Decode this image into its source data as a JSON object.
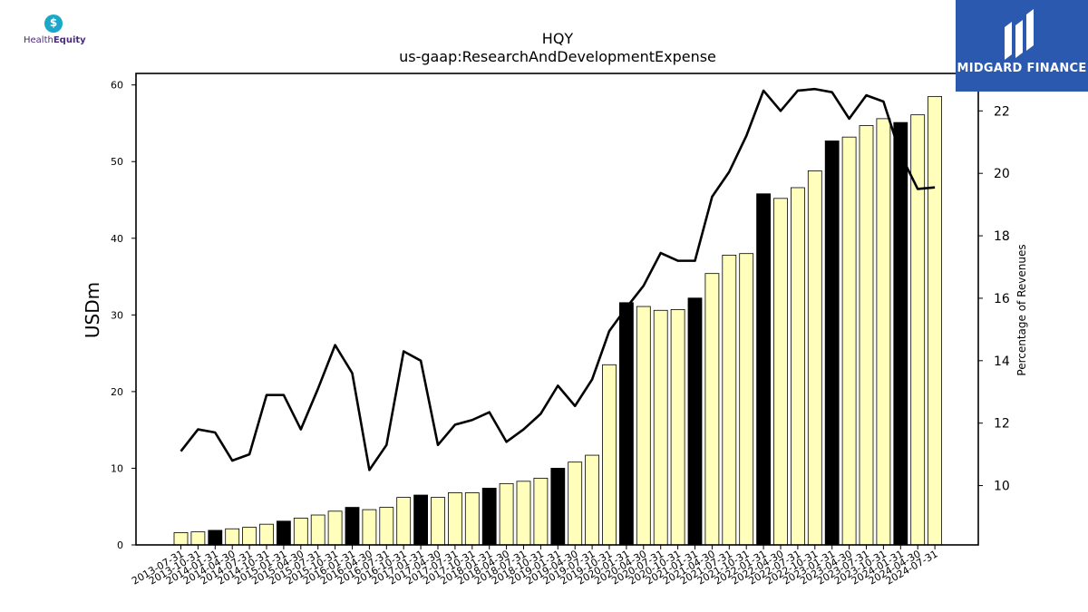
{
  "logos": {
    "left_brand": "HealthEquity",
    "left_brand_a": "Health",
    "left_brand_b": "Equity",
    "right_brand": "MIDGARD FINANCE"
  },
  "chart_data": {
    "type": "bar+line",
    "title": "HQY",
    "subtitle": "us-gaap:ResearchAndDevelopmentExpense",
    "ylabel": "USDm",
    "y2label": "Percentage of Revenues",
    "ylim": [
      0,
      61.5
    ],
    "y2lim": [
      8.1,
      23.2
    ],
    "yticks": [
      0,
      10,
      20,
      30,
      40,
      50,
      60
    ],
    "y2ticks": [
      10,
      12,
      14,
      16,
      18,
      20,
      22
    ],
    "categories": [
      "2013-07-31",
      "2013-10-31",
      "2014-01-31",
      "2014-04-30",
      "2014-07-31",
      "2014-10-31",
      "2015-01-31",
      "2015-04-30",
      "2015-07-31",
      "2015-10-31",
      "2016-01-31",
      "2016-04-30",
      "2016-07-31",
      "2016-10-31",
      "2017-01-31",
      "2017-04-30",
      "2017-07-31",
      "2017-10-31",
      "2018-01-31",
      "2018-04-30",
      "2018-07-31",
      "2018-10-31",
      "2019-01-31",
      "2019-04-30",
      "2019-07-31",
      "2019-10-31",
      "2020-01-31",
      "2020-04-30",
      "2020-07-31",
      "2020-10-31",
      "2021-01-31",
      "2021-04-30",
      "2021-07-31",
      "2021-10-31",
      "2022-01-31",
      "2022-04-30",
      "2022-07-31",
      "2022-10-31",
      "2023-01-31",
      "2023-04-30",
      "2023-07-31",
      "2023-10-31",
      "2024-01-31",
      "2024-04-30",
      "2024-07-31"
    ],
    "series": [
      {
        "type": "bar",
        "values": [
          1.6,
          1.7,
          1.9,
          2.1,
          2.3,
          2.7,
          3.1,
          3.5,
          3.9,
          4.4,
          4.9,
          4.6,
          4.9,
          6.2,
          6.5,
          6.2,
          6.8,
          6.8,
          7.4,
          8.0,
          8.3,
          8.7,
          10.0,
          10.8,
          11.7,
          23.5,
          31.6,
          31.1,
          30.6,
          30.7,
          32.2,
          35.4,
          37.8,
          38.0,
          45.8,
          45.2,
          46.6,
          48.8,
          52.7,
          53.2,
          54.7,
          55.6,
          55.1,
          56.1,
          58.5
        ],
        "highlight": [
          false,
          false,
          true,
          false,
          false,
          false,
          true,
          false,
          false,
          false,
          true,
          false,
          false,
          false,
          true,
          false,
          false,
          false,
          true,
          false,
          false,
          false,
          true,
          false,
          false,
          false,
          true,
          false,
          false,
          false,
          true,
          false,
          false,
          false,
          true,
          false,
          false,
          false,
          true,
          false,
          false,
          false,
          true,
          false,
          false
        ],
        "color": "#ffffbb",
        "highlight_color": "#000000"
      },
      {
        "type": "line",
        "axis": "y2",
        "values": [
          11.1,
          11.8,
          11.7,
          10.8,
          11.0,
          12.9,
          12.9,
          11.8,
          13.1,
          14.5,
          13.6,
          10.5,
          11.3,
          14.3,
          14.0,
          11.3,
          11.95,
          12.1,
          12.35,
          11.4,
          11.8,
          12.3,
          13.2,
          12.55,
          13.4,
          14.95,
          15.7,
          16.4,
          17.45,
          17.2,
          17.2,
          19.25,
          20.05,
          21.2,
          22.65,
          22.0,
          22.65,
          22.7,
          22.6,
          21.75,
          22.5,
          22.3,
          20.6,
          19.5,
          19.55
        ],
        "color": "#000000"
      }
    ]
  }
}
